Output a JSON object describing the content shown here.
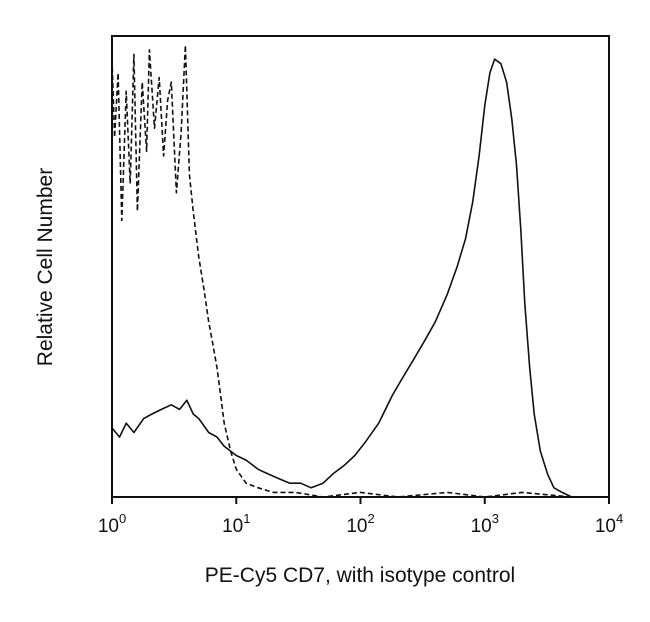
{
  "chart_data": {
    "type": "line",
    "xlabel": "PE-Cy5 CD7, with isotype control",
    "ylabel": "Relative Cell Number",
    "xscale": "log",
    "xlim": [
      1,
      10000
    ],
    "ylim": [
      0,
      100
    ],
    "grid": false,
    "x_ticks": [
      {
        "base": "10",
        "exp": "0",
        "value": 1
      },
      {
        "base": "10",
        "exp": "1",
        "value": 10
      },
      {
        "base": "10",
        "exp": "2",
        "value": 100
      },
      {
        "base": "10",
        "exp": "3",
        "value": 1000
      },
      {
        "base": "10",
        "exp": "4",
        "value": 10000
      }
    ],
    "series": [
      {
        "style": "solid",
        "color": "#111111",
        "x": [
          1.0,
          1.15,
          1.3,
          1.5,
          1.8,
          2.1,
          2.5,
          3.0,
          3.5,
          4.0,
          4.5,
          5.0,
          6.0,
          7.0,
          8.0,
          10.0,
          12.0,
          15.0,
          18.0,
          22.0,
          27.0,
          33.0,
          40.0,
          50.0,
          60.0,
          75.0,
          90.0,
          110.0,
          140.0,
          180.0,
          220.0,
          270.0,
          330.0,
          400.0,
          500.0,
          600.0,
          700.0,
          800.0,
          900.0,
          1000.0,
          1100.0,
          1200.0,
          1350.0,
          1500.0,
          1650.0,
          1800.0,
          1950.0,
          2100.0,
          2300.0,
          2500.0,
          2800.0,
          3200.0,
          3600.0,
          4200.0,
          5000.0,
          6000.0
        ],
        "y": [
          15,
          13,
          16,
          14,
          17,
          18,
          19,
          20,
          19,
          21,
          18,
          17,
          14,
          13,
          11,
          9,
          8,
          6,
          5,
          4,
          3,
          3,
          2,
          3,
          5,
          7,
          9,
          12,
          16,
          22,
          26,
          30,
          34,
          38,
          44,
          50,
          56,
          64,
          74,
          85,
          92,
          95,
          94,
          90,
          82,
          72,
          58,
          42,
          28,
          18,
          10,
          5,
          2,
          1,
          0,
          0
        ]
      },
      {
        "style": "dashed",
        "color": "#111111",
        "x": [
          1.0,
          1.05,
          1.12,
          1.2,
          1.3,
          1.4,
          1.5,
          1.6,
          1.75,
          1.9,
          2.0,
          2.2,
          2.4,
          2.6,
          2.8,
          3.0,
          3.3,
          3.6,
          3.9,
          4.2,
          4.5,
          5.0,
          5.5,
          6.0,
          6.5,
          7.0,
          7.5,
          8.0,
          9.0,
          10.0,
          12.0,
          15.0,
          20.0,
          30.0,
          50.0,
          100.0,
          200.0,
          500.0,
          1000.0,
          2000.0,
          5000.0
        ],
        "y": [
          95,
          78,
          92,
          60,
          88,
          68,
          96,
          62,
          90,
          75,
          97,
          80,
          91,
          74,
          86,
          90,
          66,
          79,
          98,
          70,
          62,
          52,
          45,
          38,
          33,
          28,
          22,
          16,
          10,
          6,
          3,
          2,
          1,
          1,
          0,
          1,
          0,
          1,
          0,
          1,
          0
        ]
      }
    ]
  }
}
